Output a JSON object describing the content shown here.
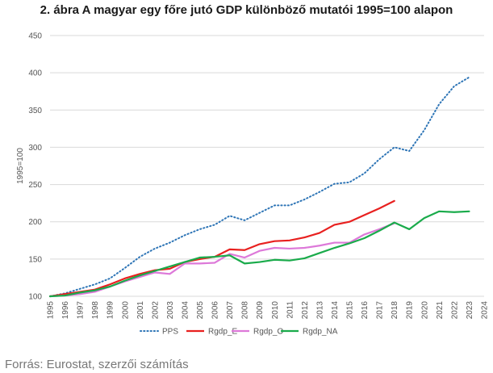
{
  "title": "2. ábra A magyar egy főre jutó GDP különböző mutatói 1995=100 alapon",
  "source": "Forrás: Eurostat, szerzői számítás",
  "chart_data": {
    "type": "line",
    "ylabel": "1995=100",
    "xlabel": "",
    "ylim": [
      100,
      450
    ],
    "yticks": [
      100,
      150,
      200,
      250,
      300,
      350,
      400,
      450
    ],
    "grid": true,
    "legend_placement": "bottom",
    "x": [
      "1995",
      "1996",
      "1997",
      "1998",
      "1999",
      "2000",
      "2001",
      "2002",
      "2003",
      "2004",
      "2005",
      "2006",
      "2007",
      "2008",
      "2009",
      "2010",
      "2011",
      "2012",
      "2013",
      "2014",
      "2015",
      "2016",
      "2017",
      "2018",
      "2019",
      "2020",
      "2021",
      "2022",
      "2023",
      "2024"
    ],
    "series": [
      {
        "name": "PPS",
        "color": "#2e75b6",
        "style": "dotted",
        "values": [
          100,
          104,
          110,
          116,
          124,
          138,
          153,
          164,
          172,
          182,
          190,
          196,
          208,
          202,
          212,
          222,
          222,
          230,
          240,
          251,
          253,
          265,
          284,
          300,
          295,
          323,
          358,
          382,
          394,
          null
        ]
      },
      {
        "name": "Rgdp_E",
        "color": "#e8201f",
        "style": "solid",
        "values": [
          100,
          103,
          106,
          109,
          116,
          124,
          130,
          135,
          137,
          146,
          150,
          153,
          163,
          162,
          170,
          174,
          175,
          179,
          185,
          196,
          200,
          209,
          218,
          228,
          null,
          null,
          null,
          null,
          null,
          null
        ]
      },
      {
        "name": "Rgdp_O",
        "color": "#dd79d9",
        "style": "solid",
        "values": [
          100,
          101,
          103,
          106,
          113,
          120,
          126,
          132,
          130,
          144,
          144,
          145,
          157,
          152,
          161,
          165,
          164,
          165,
          168,
          172,
          172,
          183,
          190,
          198,
          null,
          null,
          null,
          null,
          null,
          null
        ]
      },
      {
        "name": "Rgdp_NA",
        "color": "#1aab4b",
        "style": "solid",
        "values": [
          100,
          101,
          105,
          108,
          113,
          121,
          128,
          134,
          140,
          146,
          152,
          153,
          155,
          144,
          146,
          149,
          148,
          151,
          158,
          165,
          171,
          178,
          188,
          199,
          190,
          205,
          214,
          213,
          214,
          null
        ]
      }
    ]
  }
}
